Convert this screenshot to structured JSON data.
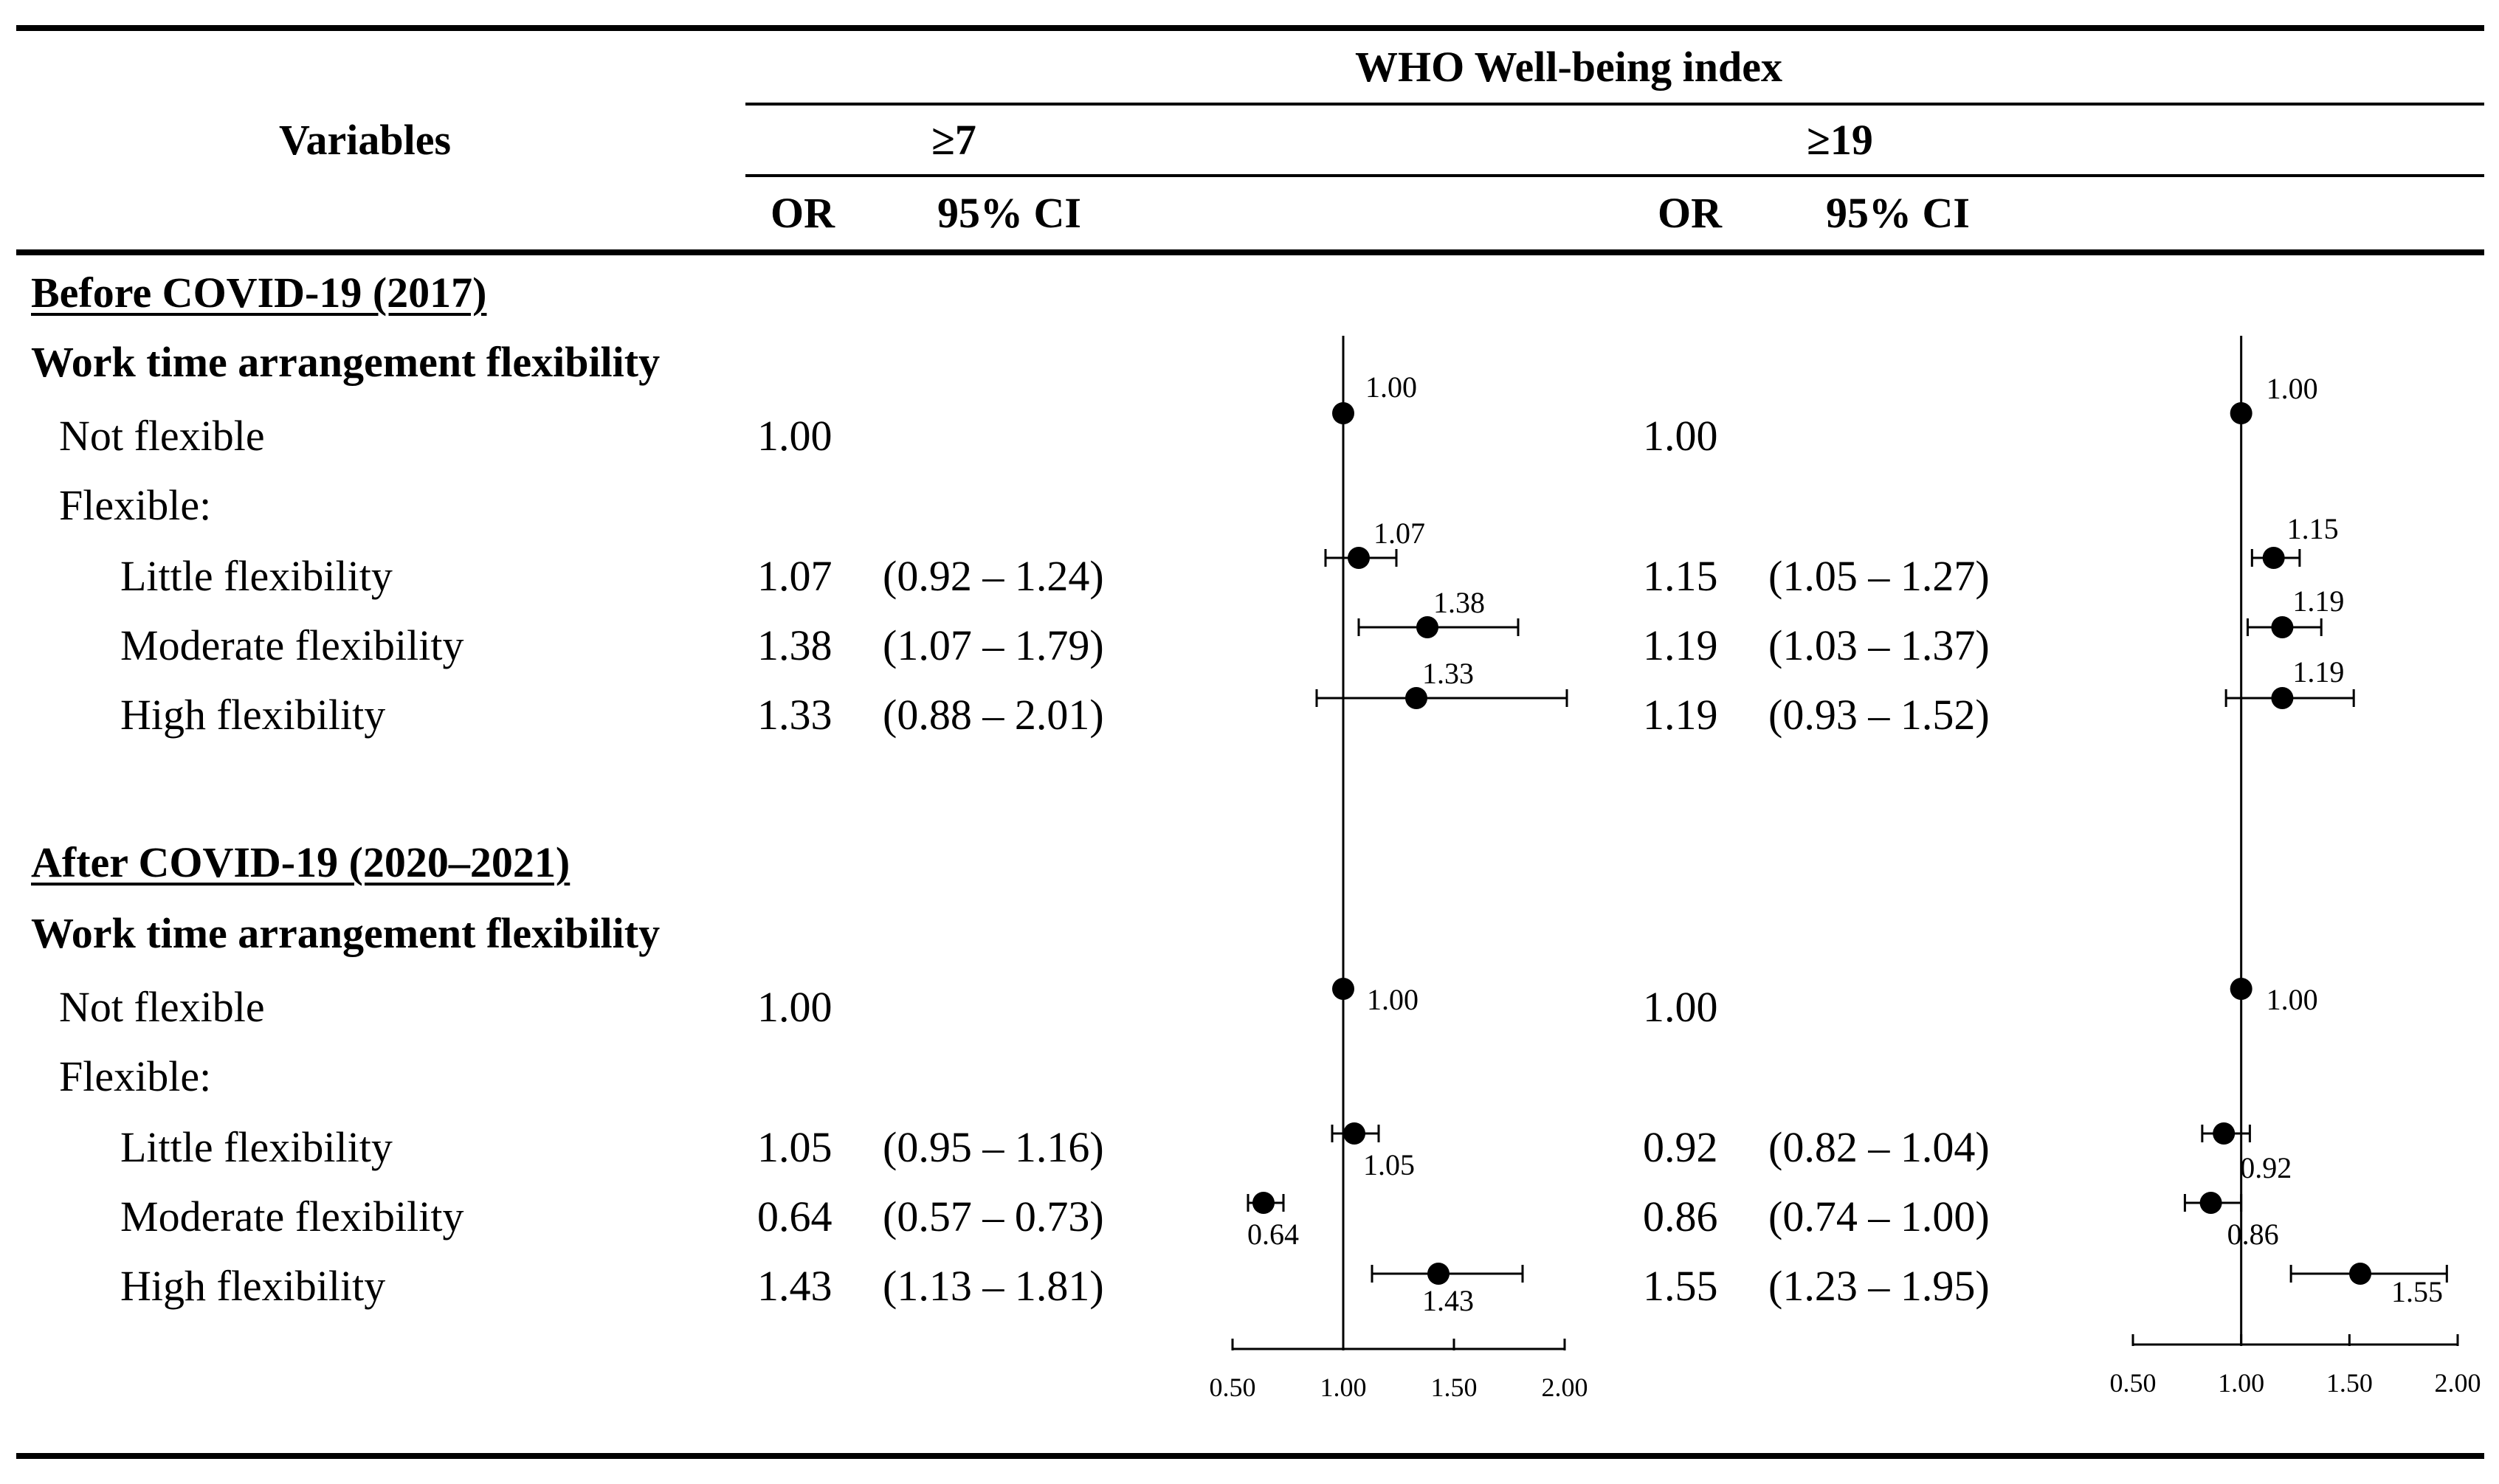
{
  "header": {
    "variables": "Variables",
    "index_title": "WHO Well-being index",
    "group1": "≥7",
    "group2": "≥19",
    "or": "OR",
    "ci": "95% CI"
  },
  "sections": [
    {
      "title": "Before COVID-19 (2017)",
      "subtitle": "Work time arrangement flexibility",
      "rows": [
        {
          "label": "Not flexible",
          "or1": "1.00",
          "ci1": "",
          "or2": "1.00",
          "ci2": ""
        },
        {
          "label": "Flexible:",
          "or1": "",
          "ci1": "",
          "or2": "",
          "ci2": ""
        },
        {
          "label": "Little flexibility",
          "or1": "1.07",
          "ci1": "(0.92 – 1.24)",
          "or2": "1.15",
          "ci2": "(1.05 – 1.27)"
        },
        {
          "label": "Moderate flexibility",
          "or1": "1.38",
          "ci1": "(1.07 – 1.79)",
          "or2": "1.19",
          "ci2": "(1.03 – 1.37)"
        },
        {
          "label": "High flexibility",
          "or1": "1.33",
          "ci1": "(0.88 – 2.01)",
          "or2": "1.19",
          "ci2": "(0.93 – 1.52)"
        }
      ]
    },
    {
      "title": "After COVID-19 (2020–2021)",
      "subtitle": "Work time arrangement flexibility",
      "rows": [
        {
          "label": "Not flexible",
          "or1": "1.00",
          "ci1": "",
          "or2": "1.00",
          "ci2": ""
        },
        {
          "label": "Flexible:",
          "or1": "",
          "ci1": "",
          "or2": "",
          "ci2": ""
        },
        {
          "label": "Little flexibility",
          "or1": "1.05",
          "ci1": "(0.95 – 1.16)",
          "or2": "0.92",
          "ci2": "(0.82 – 1.04)"
        },
        {
          "label": "Moderate flexibility",
          "or1": "0.64",
          "ci1": "(0.57 – 0.73)",
          "or2": "0.86",
          "ci2": "(0.74 – 1.00)"
        },
        {
          "label": "High flexibility",
          "or1": "1.43",
          "ci1": "(1.13 – 1.81)",
          "or2": "1.55",
          "ci2": "(1.23 – 1.95)"
        }
      ]
    }
  ],
  "chart_data": [
    {
      "type": "scatter",
      "title": "Forest plot, WHO Well-being index ≥7",
      "xlim": [
        0.5,
        2.0
      ],
      "ticks": [
        "0.50",
        "1.00",
        "1.50",
        "2.00"
      ],
      "reference": 1.0,
      "points": [
        {
          "label": "1.00",
          "or": 1.0,
          "lo": null,
          "hi": null
        },
        {
          "label": "1.07",
          "or": 1.07,
          "lo": 0.92,
          "hi": 1.24
        },
        {
          "label": "1.38",
          "or": 1.38,
          "lo": 1.07,
          "hi": 1.79
        },
        {
          "label": "1.33",
          "or": 1.33,
          "lo": 0.88,
          "hi": 2.01
        },
        {
          "label": "1.00",
          "or": 1.0,
          "lo": null,
          "hi": null
        },
        {
          "label": "1.05",
          "or": 1.05,
          "lo": 0.95,
          "hi": 1.16
        },
        {
          "label": "0.64",
          "or": 0.64,
          "lo": 0.57,
          "hi": 0.73
        },
        {
          "label": "1.43",
          "or": 1.43,
          "lo": 1.13,
          "hi": 1.81
        }
      ]
    },
    {
      "type": "scatter",
      "title": "Forest plot, WHO Well-being index ≥19",
      "xlim": [
        0.5,
        2.0
      ],
      "ticks": [
        "0.50",
        "1.00",
        "1.50",
        "2.00"
      ],
      "reference": 1.0,
      "points": [
        {
          "label": "1.00",
          "or": 1.0,
          "lo": null,
          "hi": null
        },
        {
          "label": "1.15",
          "or": 1.15,
          "lo": 1.05,
          "hi": 1.27
        },
        {
          "label": "1.19",
          "or": 1.19,
          "lo": 1.03,
          "hi": 1.37
        },
        {
          "label": "1.19",
          "or": 1.19,
          "lo": 0.93,
          "hi": 1.52
        },
        {
          "label": "1.00",
          "or": 1.0,
          "lo": null,
          "hi": null
        },
        {
          "label": "0.92",
          "or": 0.92,
          "lo": 0.82,
          "hi": 1.04
        },
        {
          "label": "0.86",
          "or": 0.86,
          "lo": 0.74,
          "hi": 1.0
        },
        {
          "label": "1.55",
          "or": 1.55,
          "lo": 1.23,
          "hi": 1.95
        }
      ]
    }
  ]
}
